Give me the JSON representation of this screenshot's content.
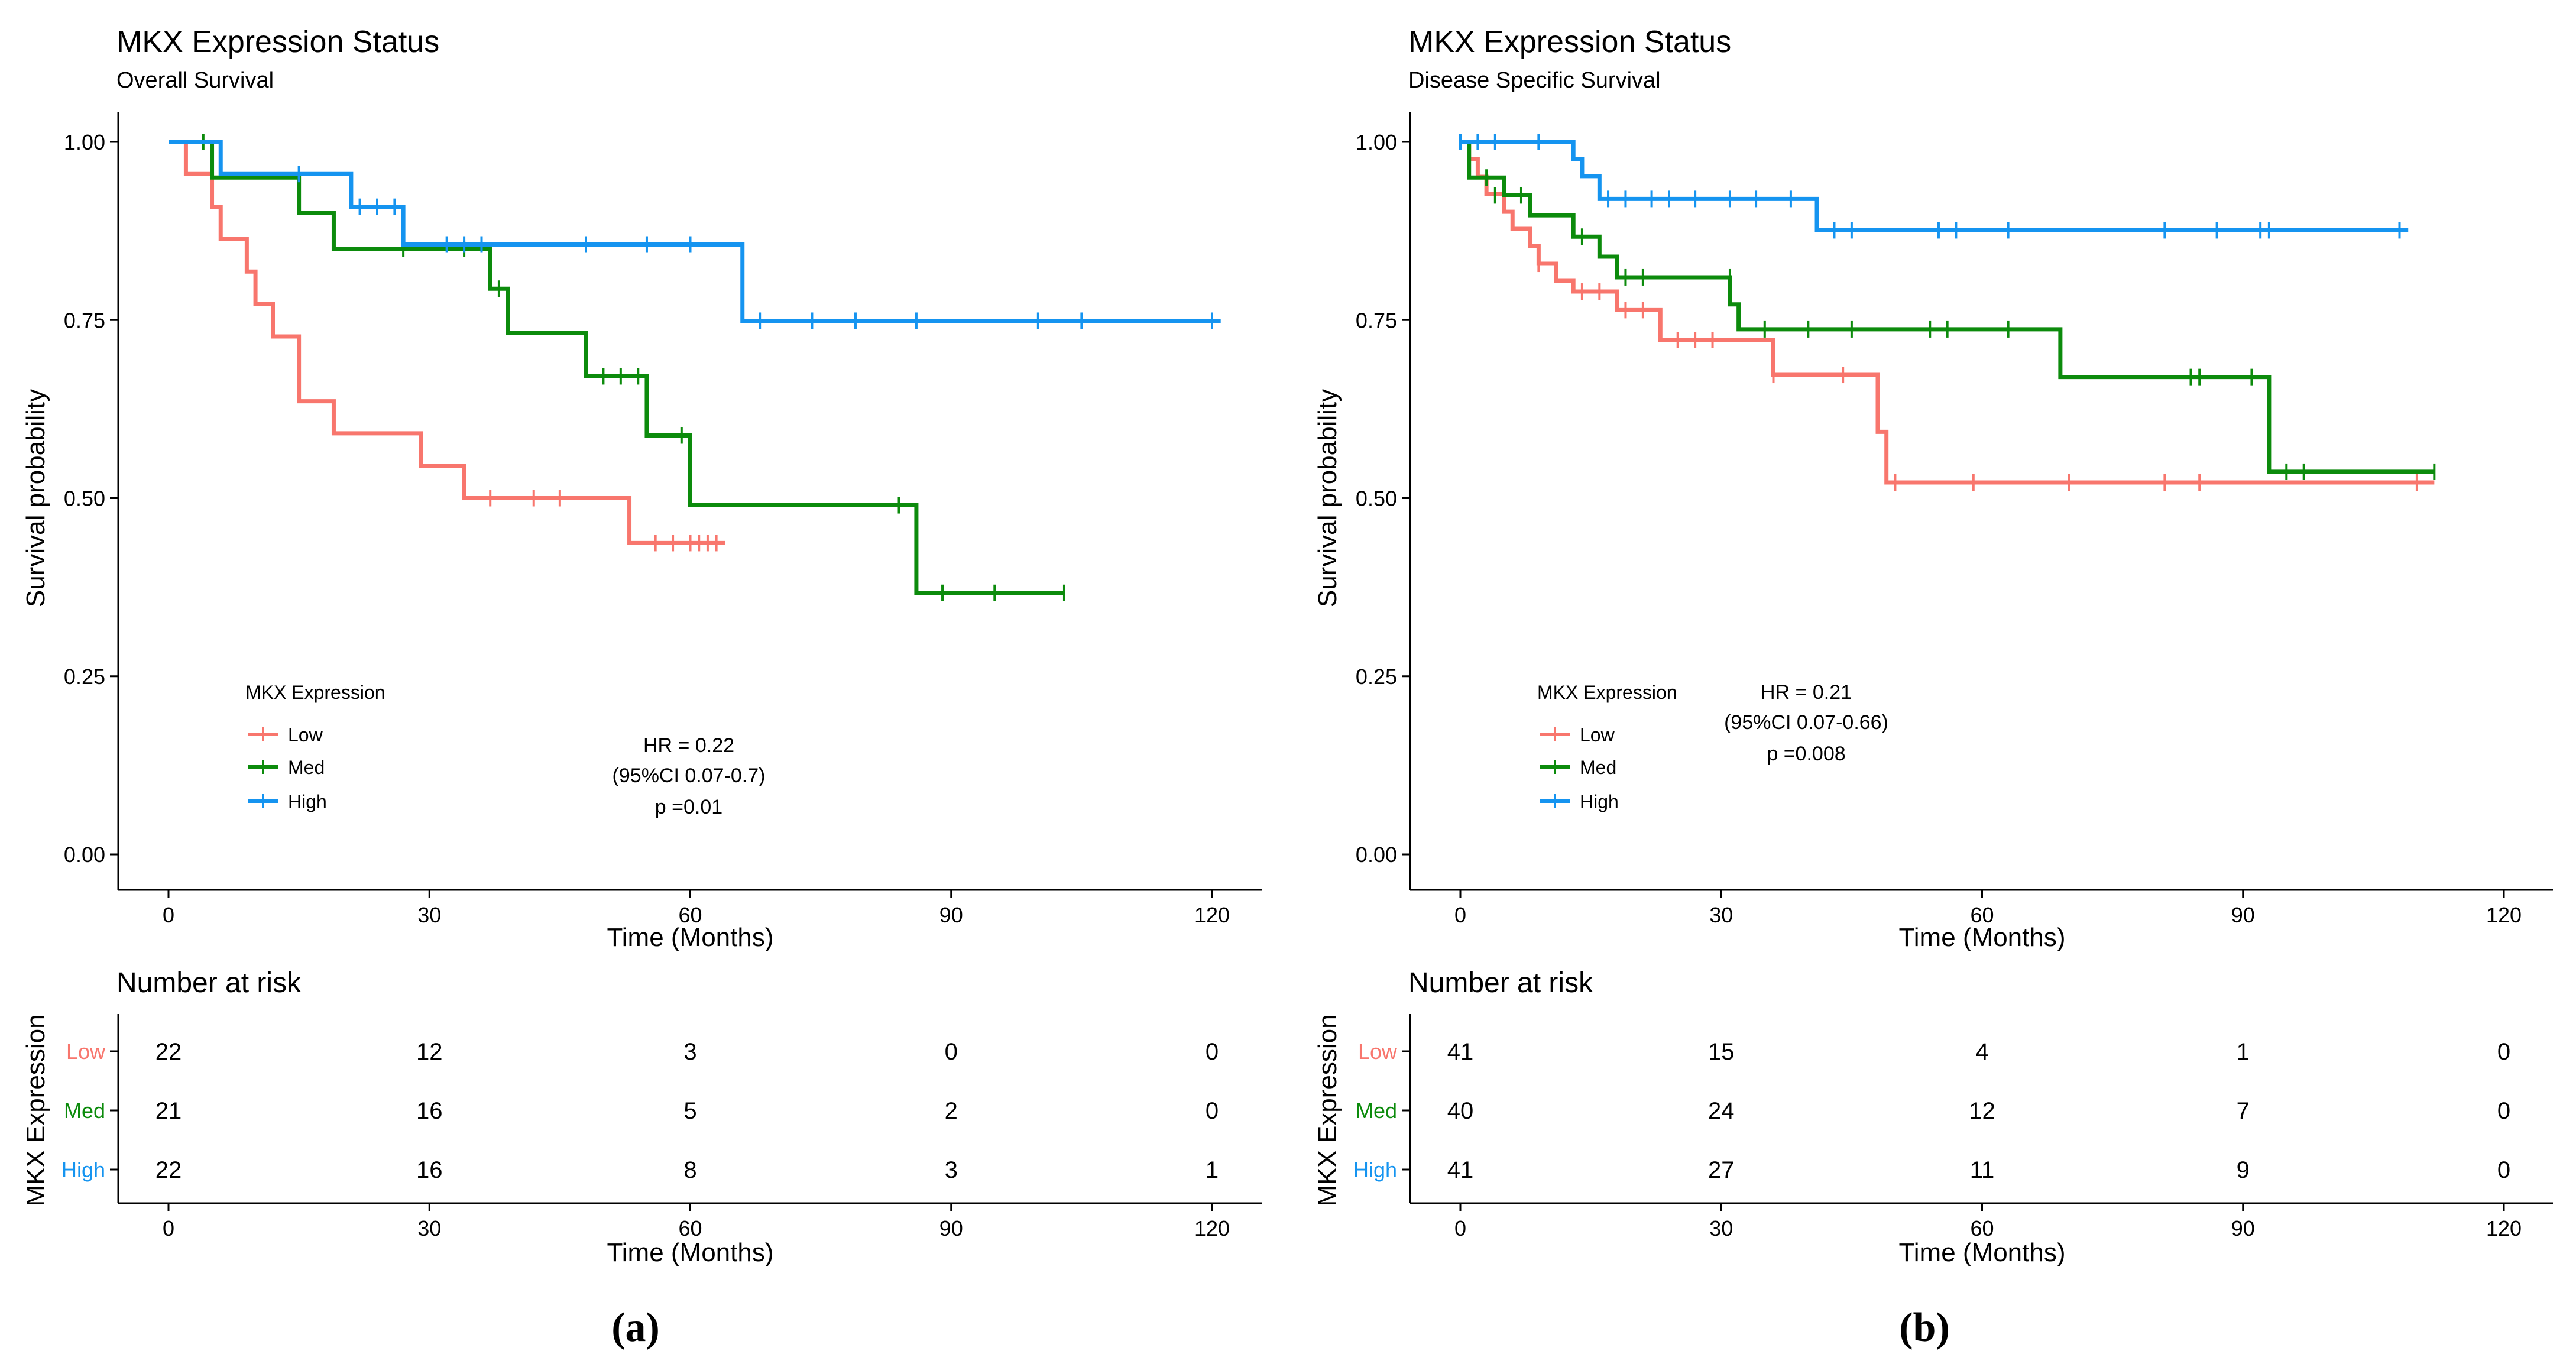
{
  "colors": {
    "Low": "#F8766D",
    "Med": "#0C8B0C",
    "High": "#1594F0",
    "axis": "#000000"
  },
  "chart_data": [
    {
      "type": "line",
      "subtype": "kaplan-meier",
      "panel_label": "(a)",
      "title": "MKX Expression Status",
      "subtitle": "Overall Survival",
      "xlabel": "Time (Months)",
      "ylabel": "Survival probability",
      "xlim": [
        0,
        120
      ],
      "ylim": [
        0,
        1
      ],
      "xticks": [
        "0",
        "30",
        "60",
        "90",
        "120"
      ],
      "yticks": [
        "0.00",
        "0.25",
        "0.50",
        "0.75",
        "1.00"
      ],
      "legend_title": "MKX Expression",
      "legend": [
        "Low",
        "Med",
        "High"
      ],
      "stats": [
        "HR = 0.22",
        "(95%CI 0.07-0.7)",
        "p =0.01"
      ],
      "series": [
        {
          "name": "Low",
          "steps": [
            [
              0,
              1.0
            ],
            [
              2,
              0.955
            ],
            [
              5,
              0.909
            ],
            [
              6,
              0.864
            ],
            [
              9,
              0.818
            ],
            [
              10,
              0.773
            ],
            [
              12,
              0.727
            ],
            [
              15,
              0.636
            ],
            [
              19,
              0.591
            ],
            [
              29,
              0.545
            ],
            [
              34,
              0.5
            ],
            [
              53,
              0.437
            ],
            [
              64,
              0.437
            ]
          ],
          "censors": [
            [
              37,
              0.5
            ],
            [
              42,
              0.5
            ],
            [
              45,
              0.5
            ],
            [
              56,
              0.437
            ],
            [
              58,
              0.437
            ],
            [
              60,
              0.437
            ],
            [
              61,
              0.437
            ],
            [
              62,
              0.437
            ],
            [
              63,
              0.437
            ]
          ]
        },
        {
          "name": "Med",
          "steps": [
            [
              0,
              1.0
            ],
            [
              5,
              0.95
            ],
            [
              15,
              0.9
            ],
            [
              19,
              0.85
            ],
            [
              37,
              0.794
            ],
            [
              39,
              0.732
            ],
            [
              48,
              0.671
            ],
            [
              55,
              0.588
            ],
            [
              60,
              0.49
            ],
            [
              86,
              0.367
            ],
            [
              103,
              0.367
            ]
          ],
          "censors": [
            [
              4,
              1.0
            ],
            [
              27,
              0.85
            ],
            [
              34,
              0.85
            ],
            [
              38,
              0.794
            ],
            [
              50,
              0.671
            ],
            [
              52,
              0.671
            ],
            [
              54,
              0.671
            ],
            [
              59,
              0.588
            ],
            [
              84,
              0.49
            ],
            [
              89,
              0.367
            ],
            [
              95,
              0.367
            ],
            [
              103,
              0.367
            ]
          ]
        },
        {
          "name": "High",
          "steps": [
            [
              0,
              1.0
            ],
            [
              6,
              0.955
            ],
            [
              21,
              0.909
            ],
            [
              27,
              0.856
            ],
            [
              66,
              0.749
            ],
            [
              121,
              0.749
            ]
          ],
          "censors": [
            [
              15,
              0.955
            ],
            [
              22,
              0.909
            ],
            [
              24,
              0.909
            ],
            [
              26,
              0.909
            ],
            [
              32,
              0.856
            ],
            [
              34,
              0.856
            ],
            [
              36,
              0.856
            ],
            [
              48,
              0.856
            ],
            [
              55,
              0.856
            ],
            [
              60,
              0.856
            ],
            [
              68,
              0.749
            ],
            [
              74,
              0.749
            ],
            [
              79,
              0.749
            ],
            [
              86,
              0.749
            ],
            [
              100,
              0.749
            ],
            [
              105,
              0.749
            ],
            [
              120,
              0.749
            ]
          ]
        }
      ],
      "risk_table": {
        "title": "Number at risk",
        "ylabel": "MKX Expression",
        "xlabel": "Time (Months)",
        "times": [
          "0",
          "30",
          "60",
          "90",
          "120"
        ],
        "rows": [
          {
            "group": "Low",
            "counts": [
              "22",
              "12",
              "3",
              "0",
              "0"
            ]
          },
          {
            "group": "Med",
            "counts": [
              "21",
              "16",
              "5",
              "2",
              "0"
            ]
          },
          {
            "group": "High",
            "counts": [
              "22",
              "16",
              "8",
              "3",
              "1"
            ]
          }
        ]
      }
    },
    {
      "type": "line",
      "subtype": "kaplan-meier",
      "panel_label": "(b)",
      "title": "MKX Expression Status",
      "subtitle": "Disease Specific Survival",
      "xlabel": "Time (Months)",
      "ylabel": "Survival probability",
      "xlim": [
        0,
        120
      ],
      "ylim": [
        0,
        1
      ],
      "xticks": [
        "0",
        "30",
        "60",
        "90",
        "120"
      ],
      "yticks": [
        "0.00",
        "0.25",
        "0.50",
        "0.75",
        "1.00"
      ],
      "legend_title": "MKX Expression",
      "legend": [
        "Low",
        "Med",
        "High"
      ],
      "stats": [
        "HR = 0.21",
        "(95%CI 0.07-0.66)",
        "p =0.008"
      ],
      "series": [
        {
          "name": "Low",
          "steps": [
            [
              0,
              1.0
            ],
            [
              1,
              0.976
            ],
            [
              2,
              0.951
            ],
            [
              3,
              0.927
            ],
            [
              5,
              0.902
            ],
            [
              6,
              0.878
            ],
            [
              8,
              0.854
            ],
            [
              9,
              0.829
            ],
            [
              11,
              0.805
            ],
            [
              13,
              0.79
            ],
            [
              18,
              0.764
            ],
            [
              23,
              0.722
            ],
            [
              36,
              0.673
            ],
            [
              48,
              0.593
            ],
            [
              49,
              0.522
            ],
            [
              112,
              0.522
            ]
          ],
          "censors": [
            [
              9,
              0.829
            ],
            [
              14,
              0.79
            ],
            [
              16,
              0.79
            ],
            [
              19,
              0.764
            ],
            [
              21,
              0.764
            ],
            [
              25,
              0.722
            ],
            [
              27,
              0.722
            ],
            [
              29,
              0.722
            ],
            [
              36,
              0.673
            ],
            [
              44,
              0.673
            ],
            [
              50,
              0.522
            ],
            [
              59,
              0.522
            ],
            [
              70,
              0.522
            ],
            [
              81,
              0.522
            ],
            [
              85,
              0.522
            ],
            [
              110,
              0.522
            ]
          ]
        },
        {
          "name": "Med",
          "steps": [
            [
              0,
              1.0
            ],
            [
              1,
              0.95
            ],
            [
              5,
              0.925
            ],
            [
              8,
              0.897
            ],
            [
              13,
              0.867
            ],
            [
              16,
              0.839
            ],
            [
              18,
              0.81
            ],
            [
              31,
              0.772
            ],
            [
              32,
              0.737
            ],
            [
              69,
              0.67
            ],
            [
              93,
              0.537
            ],
            [
              112,
              0.537
            ]
          ],
          "censors": [
            [
              3,
              0.95
            ],
            [
              4,
              0.925
            ],
            [
              7,
              0.925
            ],
            [
              14,
              0.867
            ],
            [
              19,
              0.81
            ],
            [
              21,
              0.81
            ],
            [
              31,
              0.81
            ],
            [
              35,
              0.737
            ],
            [
              40,
              0.737
            ],
            [
              45,
              0.737
            ],
            [
              54,
              0.737
            ],
            [
              56,
              0.737
            ],
            [
              63,
              0.737
            ],
            [
              84,
              0.67
            ],
            [
              85,
              0.67
            ],
            [
              91,
              0.67
            ],
            [
              95,
              0.537
            ],
            [
              97,
              0.537
            ],
            [
              112,
              0.537
            ]
          ]
        },
        {
          "name": "High",
          "steps": [
            [
              0,
              1.0
            ],
            [
              13,
              0.976
            ],
            [
              14,
              0.952
            ],
            [
              16,
              0.92
            ],
            [
              41,
              0.876
            ],
            [
              109,
              0.876
            ]
          ],
          "censors": [
            [
              0,
              1.0
            ],
            [
              2,
              1.0
            ],
            [
              4,
              1.0
            ],
            [
              9,
              1.0
            ],
            [
              17,
              0.92
            ],
            [
              19,
              0.92
            ],
            [
              22,
              0.92
            ],
            [
              24,
              0.92
            ],
            [
              27,
              0.92
            ],
            [
              31,
              0.92
            ],
            [
              34,
              0.92
            ],
            [
              38,
              0.92
            ],
            [
              43,
              0.876
            ],
            [
              45,
              0.876
            ],
            [
              55,
              0.876
            ],
            [
              57,
              0.876
            ],
            [
              63,
              0.876
            ],
            [
              81,
              0.876
            ],
            [
              87,
              0.876
            ],
            [
              92,
              0.876
            ],
            [
              93,
              0.876
            ],
            [
              108,
              0.876
            ]
          ]
        }
      ],
      "risk_table": {
        "title": "Number at risk",
        "ylabel": "MKX Expression",
        "xlabel": "Time (Months)",
        "times": [
          "0",
          "30",
          "60",
          "90",
          "120"
        ],
        "rows": [
          {
            "group": "Low",
            "counts": [
              "41",
              "15",
              "4",
              "1",
              "0"
            ]
          },
          {
            "group": "Med",
            "counts": [
              "40",
              "24",
              "12",
              "7",
              "0"
            ]
          },
          {
            "group": "High",
            "counts": [
              "41",
              "27",
              "11",
              "9",
              "0"
            ]
          }
        ]
      }
    }
  ]
}
